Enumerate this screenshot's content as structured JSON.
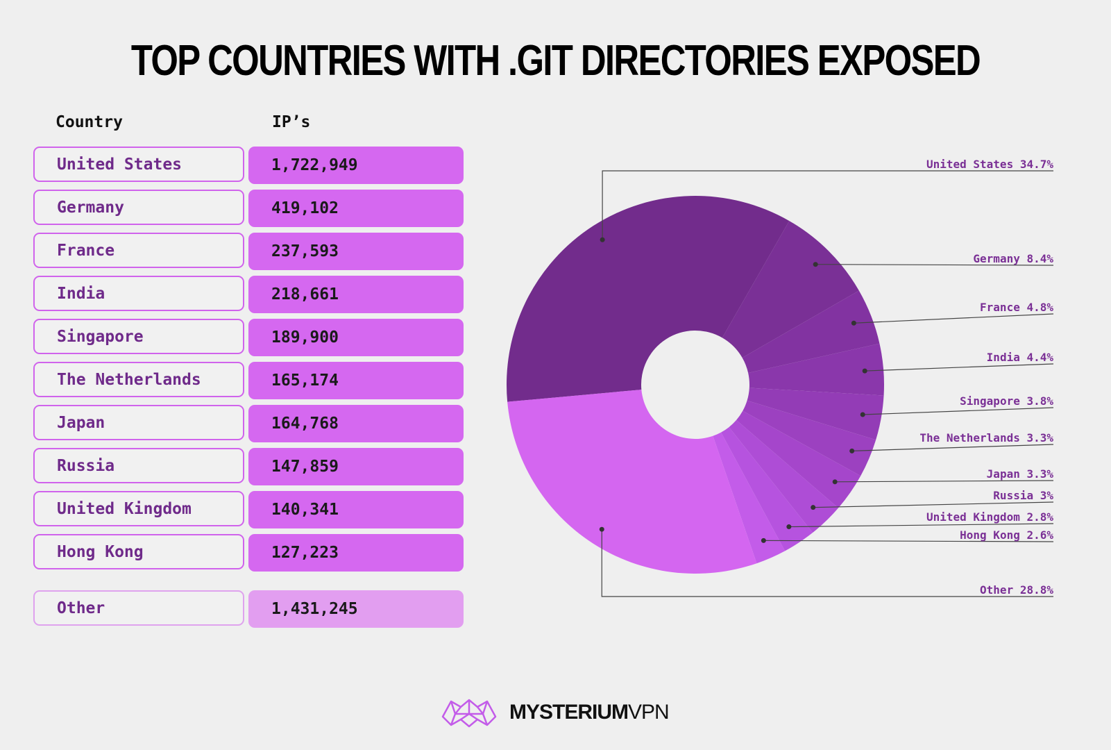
{
  "title": "TOP COUNTRIES WITH .GIT DIRECTORIES EXPOSED",
  "table": {
    "header_country": "Country",
    "header_ips": "IP’s",
    "rows": [
      {
        "country": "United States",
        "ips": "1,722,949"
      },
      {
        "country": "Germany",
        "ips": "419,102"
      },
      {
        "country": "France",
        "ips": "237,593"
      },
      {
        "country": "India",
        "ips": "218,661"
      },
      {
        "country": "Singapore",
        "ips": "189,900"
      },
      {
        "country": "The Netherlands",
        "ips": "165,174"
      },
      {
        "country": "Japan",
        "ips": "164,768"
      },
      {
        "country": "Russia",
        "ips": "147,859"
      },
      {
        "country": "United Kingdom",
        "ips": "140,341"
      },
      {
        "country": "Hong Kong",
        "ips": "127,223"
      }
    ],
    "other": {
      "country": "Other",
      "ips": "1,431,245"
    }
  },
  "chart_data": {
    "type": "pie",
    "donut": true,
    "slices": [
      {
        "label": "United States 34.7%",
        "value": 34.7,
        "color": "#722c8c"
      },
      {
        "label": "Germany 8.4%",
        "value": 8.4,
        "color": "#7a3096"
      },
      {
        "label": "France 4.8%",
        "value": 4.8,
        "color": "#8233a1"
      },
      {
        "label": "India 4.4%",
        "value": 4.4,
        "color": "#8a37ab"
      },
      {
        "label": "Singapore 3.8%",
        "value": 3.8,
        "color": "#933cb6"
      },
      {
        "label": "The Netherlands 3.3%",
        "value": 3.3,
        "color": "#9c41c0"
      },
      {
        "label": "Japan 3.3%",
        "value": 3.3,
        "color": "#a546cb"
      },
      {
        "label": "Russia 3%",
        "value": 3.0,
        "color": "#ae4dd6"
      },
      {
        "label": "United Kingdom 2.8%",
        "value": 2.8,
        "color": "#b653df"
      },
      {
        "label": "Hong Kong 2.6%",
        "value": 2.6,
        "color": "#c35ce9"
      },
      {
        "label": "Other 28.8%",
        "value": 28.8,
        "color": "#d466f0"
      }
    ]
  },
  "logo": {
    "bold": "MYSTERIUM",
    "light": "VPN"
  },
  "colors": {
    "accent": "#d568f0",
    "dark": "#722c8c",
    "background": "#efefef"
  }
}
